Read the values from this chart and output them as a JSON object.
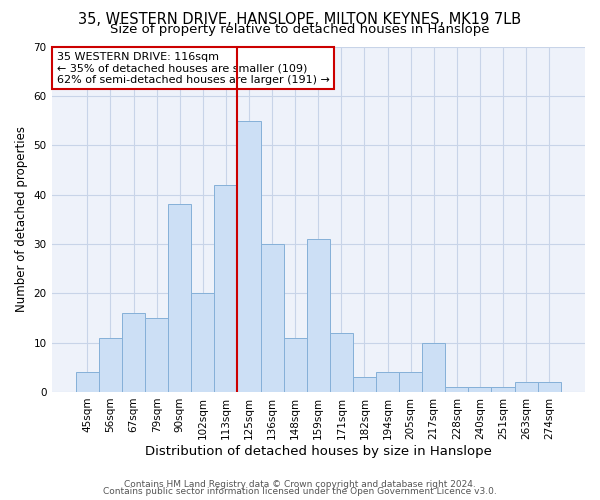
{
  "title1": "35, WESTERN DRIVE, HANSLOPE, MILTON KEYNES, MK19 7LB",
  "title2": "Size of property relative to detached houses in Hanslope",
  "xlabel": "Distribution of detached houses by size in Hanslope",
  "ylabel": "Number of detached properties",
  "footnote1": "Contains HM Land Registry data © Crown copyright and database right 2024.",
  "footnote2": "Contains public sector information licensed under the Open Government Licence v3.0.",
  "annotation_line1": "35 WESTERN DRIVE: 116sqm",
  "annotation_line2": "← 35% of detached houses are smaller (109)",
  "annotation_line3": "62% of semi-detached houses are larger (191) →",
  "bar_labels": [
    "45sqm",
    "56sqm",
    "67sqm",
    "79sqm",
    "90sqm",
    "102sqm",
    "113sqm",
    "125sqm",
    "136sqm",
    "148sqm",
    "159sqm",
    "171sqm",
    "182sqm",
    "194sqm",
    "205sqm",
    "217sqm",
    "228sqm",
    "240sqm",
    "251sqm",
    "263sqm",
    "274sqm"
  ],
  "bar_values": [
    4,
    11,
    16,
    15,
    38,
    20,
    42,
    55,
    30,
    11,
    31,
    12,
    3,
    4,
    4,
    10,
    1,
    1,
    1,
    2,
    2
  ],
  "bar_color": "#ccdff5",
  "bar_edge_color": "#85b0d8",
  "red_line_x": 6.5,
  "ylim": [
    0,
    70
  ],
  "yticks": [
    0,
    10,
    20,
    30,
    40,
    50,
    60,
    70
  ],
  "grid_color": "#c8d4e8",
  "background_color": "#eef2fa",
  "red_line_color": "#cc0000",
  "annotation_box_edge_color": "#cc0000",
  "title1_fontsize": 10.5,
  "title2_fontsize": 9.5,
  "xlabel_fontsize": 9.5,
  "ylabel_fontsize": 8.5,
  "tick_fontsize": 7.5,
  "annotation_fontsize": 8,
  "footnote_fontsize": 6.5
}
